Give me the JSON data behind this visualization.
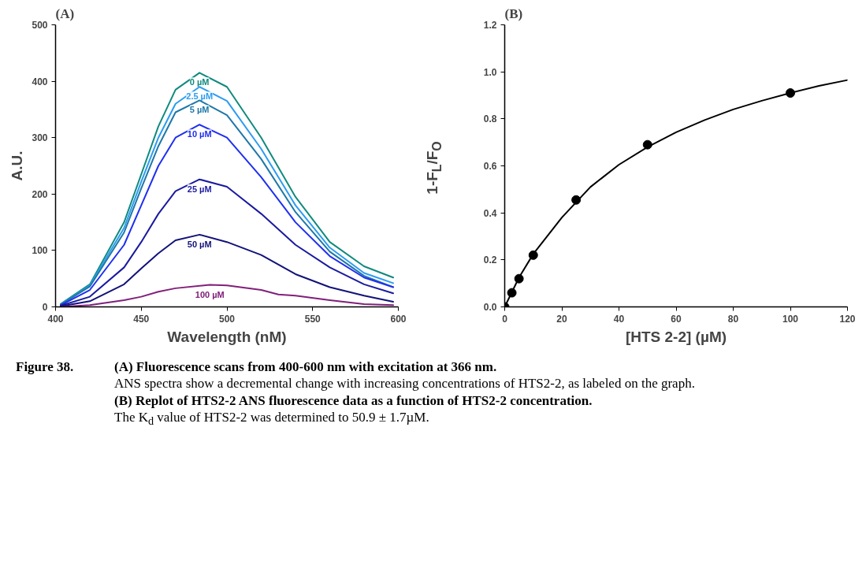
{
  "chart_data": [
    {
      "type": "line",
      "title": "(A)",
      "xlabel": "Wavelength (nM)",
      "ylabel": "A.U.",
      "xlim": [
        400,
        600
      ],
      "ylim": [
        0,
        500
      ],
      "xticks": [
        400,
        450,
        500,
        550,
        600
      ],
      "yticks": [
        0,
        100,
        200,
        300,
        400,
        500
      ],
      "x": [
        403,
        420,
        440,
        450,
        460,
        470,
        484,
        500,
        520,
        540,
        560,
        580,
        597
      ],
      "series": [
        {
          "name": "0 µM",
          "color": "#0f8a7e",
          "values": [
            5,
            40,
            150,
            235,
            320,
            385,
            415,
            390,
            300,
            195,
            115,
            72,
            52
          ]
        },
        {
          "name": "2.5 µM",
          "color": "#2b9cf0",
          "values": [
            4,
            38,
            140,
            222,
            300,
            360,
            390,
            365,
            280,
            180,
            105,
            60,
            42
          ]
        },
        {
          "name": "5 µM",
          "color": "#1f78a8",
          "values": [
            4,
            36,
            132,
            210,
            285,
            345,
            366,
            340,
            262,
            168,
            98,
            55,
            35
          ]
        },
        {
          "name": "10 µM",
          "color": "#1f2ff0",
          "values": [
            3,
            30,
            110,
            180,
            250,
            300,
            323,
            300,
            230,
            150,
            90,
            52,
            35
          ]
        },
        {
          "name": "25 µM",
          "color": "#1a1aa0",
          "values": [
            2,
            18,
            70,
            115,
            165,
            205,
            226,
            213,
            165,
            110,
            70,
            40,
            24
          ]
        },
        {
          "name": "50 µM",
          "color": "#12127a",
          "values": [
            1,
            10,
            40,
            68,
            95,
            118,
            128,
            115,
            92,
            58,
            35,
            20,
            9
          ]
        },
        {
          "name": "100 µM",
          "color": "#80207a",
          "x": [
            403,
            420,
            440,
            450,
            460,
            470,
            490,
            500,
            520,
            530,
            540,
            560,
            580,
            597
          ],
          "values": [
            0,
            3,
            12,
            18,
            27,
            33,
            39,
            38,
            30,
            22,
            20,
            12,
            5,
            3
          ]
        }
      ],
      "annotations": [
        "Figure 38.",
        "(A) Fluorescence scans from 400-600 nm with excitation at 366 nm.",
        "ANS spectra show a decremental change with increasing concentrations of HTS2-2, as labeled on the graph.",
        "(B) Replot of HTS2-2 ANS fluorescence data as a function of HTS2-2 concentration.",
        "The K$_{d}$ value of HTS2-2 was determined to 50.9 ± 1.7µM."
      ]
    },
    {
      "type": "scatter",
      "title": "(B)",
      "xlabel": "[HTS 2-2] (µM)",
      "ylabel": "1-F$_{L}$/F$_{O}$",
      "xlim": [
        0,
        120
      ],
      "ylim": [
        0,
        1.2
      ],
      "xticks": [
        0,
        20,
        40,
        60,
        80,
        100,
        120
      ],
      "yticks": [
        {
          "value": 0,
          "label": "0.0"
        },
        {
          "value": 0.2,
          "label": "0.2"
        },
        {
          "value": 0.4,
          "label": "0.4"
        },
        {
          "value": 0.6,
          "label": "0.6"
        },
        {
          "value": 0.8,
          "label": "0.8"
        },
        {
          "value": 1,
          "label": "1.0"
        },
        {
          "value": 1.2,
          "label": "1.2"
        }
      ],
      "series": [
        {
          "type": "line",
          "color": "#000000",
          "x": [
            0,
            5,
            10,
            20,
            30,
            40,
            50,
            60,
            70,
            80,
            90,
            100,
            110,
            120
          ],
          "values": [
            0,
            0.125,
            0.225,
            0.38,
            0.51,
            0.605,
            0.68,
            0.743,
            0.795,
            0.84,
            0.877,
            0.91,
            0.94,
            0.965
          ]
        },
        {
          "type": "scatter",
          "marker": "circle",
          "color": "#000000",
          "x": [
            0,
            2.5,
            5,
            10,
            25,
            50,
            100
          ],
          "values": [
            0,
            0.06,
            0.12,
            0.22,
            0.455,
            0.69,
            0.91
          ]
        }
      ]
    }
  ]
}
